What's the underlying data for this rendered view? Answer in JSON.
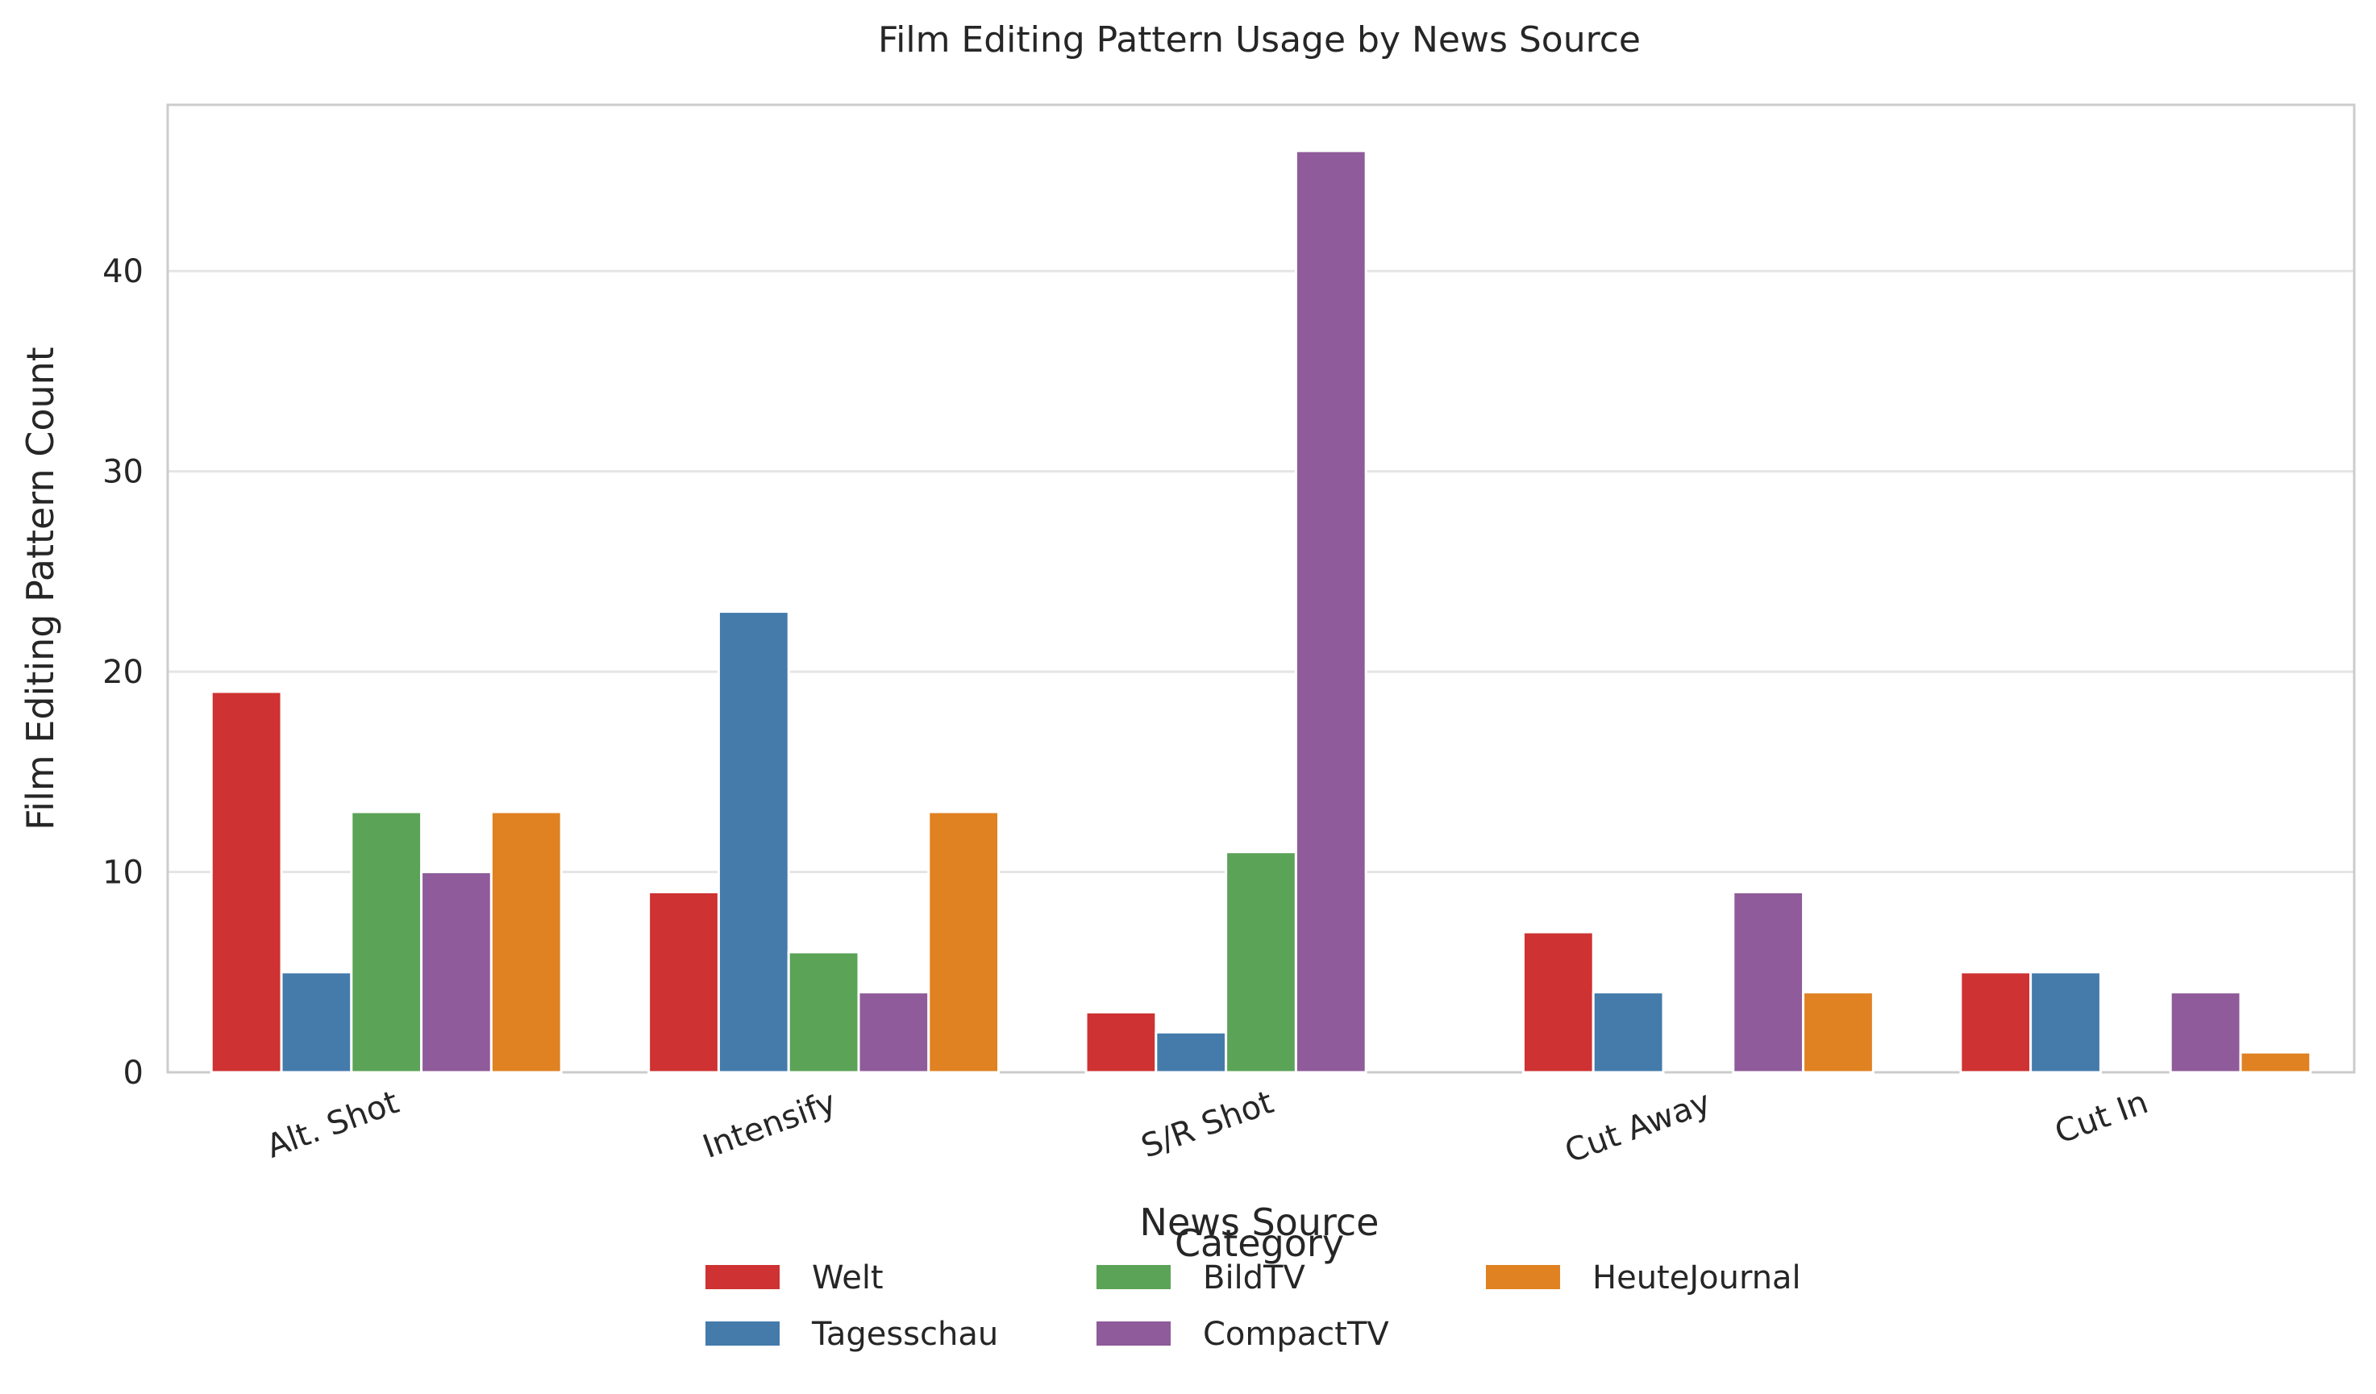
{
  "chart_data": {
    "type": "bar",
    "title": "Film Editing Pattern Usage by News Source",
    "xlabel": "News Source",
    "ylabel": "Film Editing Pattern Count",
    "categories": [
      "Alt. Shot",
      "Intensify",
      "S/R Shot",
      "Cut Away",
      "Cut In"
    ],
    "series": [
      {
        "name": "Welt",
        "color": "#ce3232",
        "values": [
          19,
          9,
          3,
          7,
          5
        ]
      },
      {
        "name": "Tagesschau",
        "color": "#447bab",
        "values": [
          5,
          23,
          2,
          4,
          5
        ]
      },
      {
        "name": "BildTV",
        "color": "#5ba357",
        "values": [
          13,
          6,
          11,
          0,
          0
        ]
      },
      {
        "name": "CompactTV",
        "color": "#8f5b9a",
        "values": [
          10,
          4,
          46,
          9,
          4
        ]
      },
      {
        "name": "HeuteJournal",
        "color": "#e08122",
        "values": [
          13,
          13,
          0,
          4,
          1
        ]
      }
    ],
    "ylim": [
      0,
      48.3
    ],
    "yticks": [
      0,
      10,
      20,
      30,
      40
    ],
    "grid": true,
    "legend": {
      "title": "Category",
      "placement": "bottom-center"
    }
  }
}
